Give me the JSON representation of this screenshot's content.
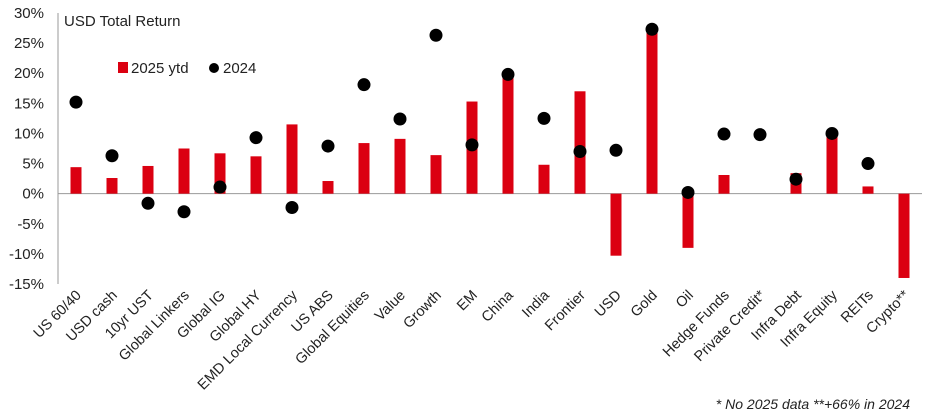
{
  "chart_data": {
    "type": "bar",
    "title": "USD Total Return",
    "categories": [
      "US 60/40",
      "USD cash",
      "10yr UST",
      "Global Linkers",
      "Global IG",
      "Global HY",
      "EMD Local Currency",
      "US ABS",
      "Global Equities",
      "Value",
      "Growth",
      "EM",
      "China",
      "India",
      "Frontier",
      "USD",
      "Gold",
      "Oil",
      "Hedge Funds",
      "Private Credit*",
      "Infra Debt",
      "Infra Equity",
      "REITs",
      "Crypto**"
    ],
    "series": [
      {
        "name": "2025 ytd",
        "kind": "bar",
        "color": "#db0011",
        "values": [
          4.4,
          2.6,
          4.6,
          7.5,
          6.7,
          6.2,
          11.5,
          2.1,
          8.4,
          9.1,
          6.4,
          15.3,
          19.9,
          4.8,
          17.0,
          -10.3,
          27.5,
          -9.0,
          3.1,
          null,
          3.4,
          10.0,
          1.2,
          -14.0
        ]
      },
      {
        "name": "2024",
        "kind": "dot",
        "color": "#000000",
        "values": [
          15.2,
          6.3,
          -1.6,
          -3.0,
          1.1,
          9.3,
          -2.3,
          7.9,
          18.1,
          12.4,
          26.3,
          8.1,
          19.8,
          12.5,
          7.0,
          7.2,
          27.3,
          0.2,
          9.9,
          9.8,
          2.4,
          10.0,
          5.0,
          null
        ]
      }
    ],
    "ylim": [
      -15,
      30
    ],
    "yticks": [
      "30%",
      "25%",
      "20%",
      "15%",
      "10%",
      "5%",
      "0%",
      "-5%",
      "-10%",
      "-15%"
    ],
    "ytick_values": [
      30,
      25,
      20,
      15,
      10,
      5,
      0,
      -5,
      -10,
      -15
    ],
    "grid": false,
    "legend_position": "top-left"
  },
  "footnote": "* No 2025 data **+66% in 2024"
}
